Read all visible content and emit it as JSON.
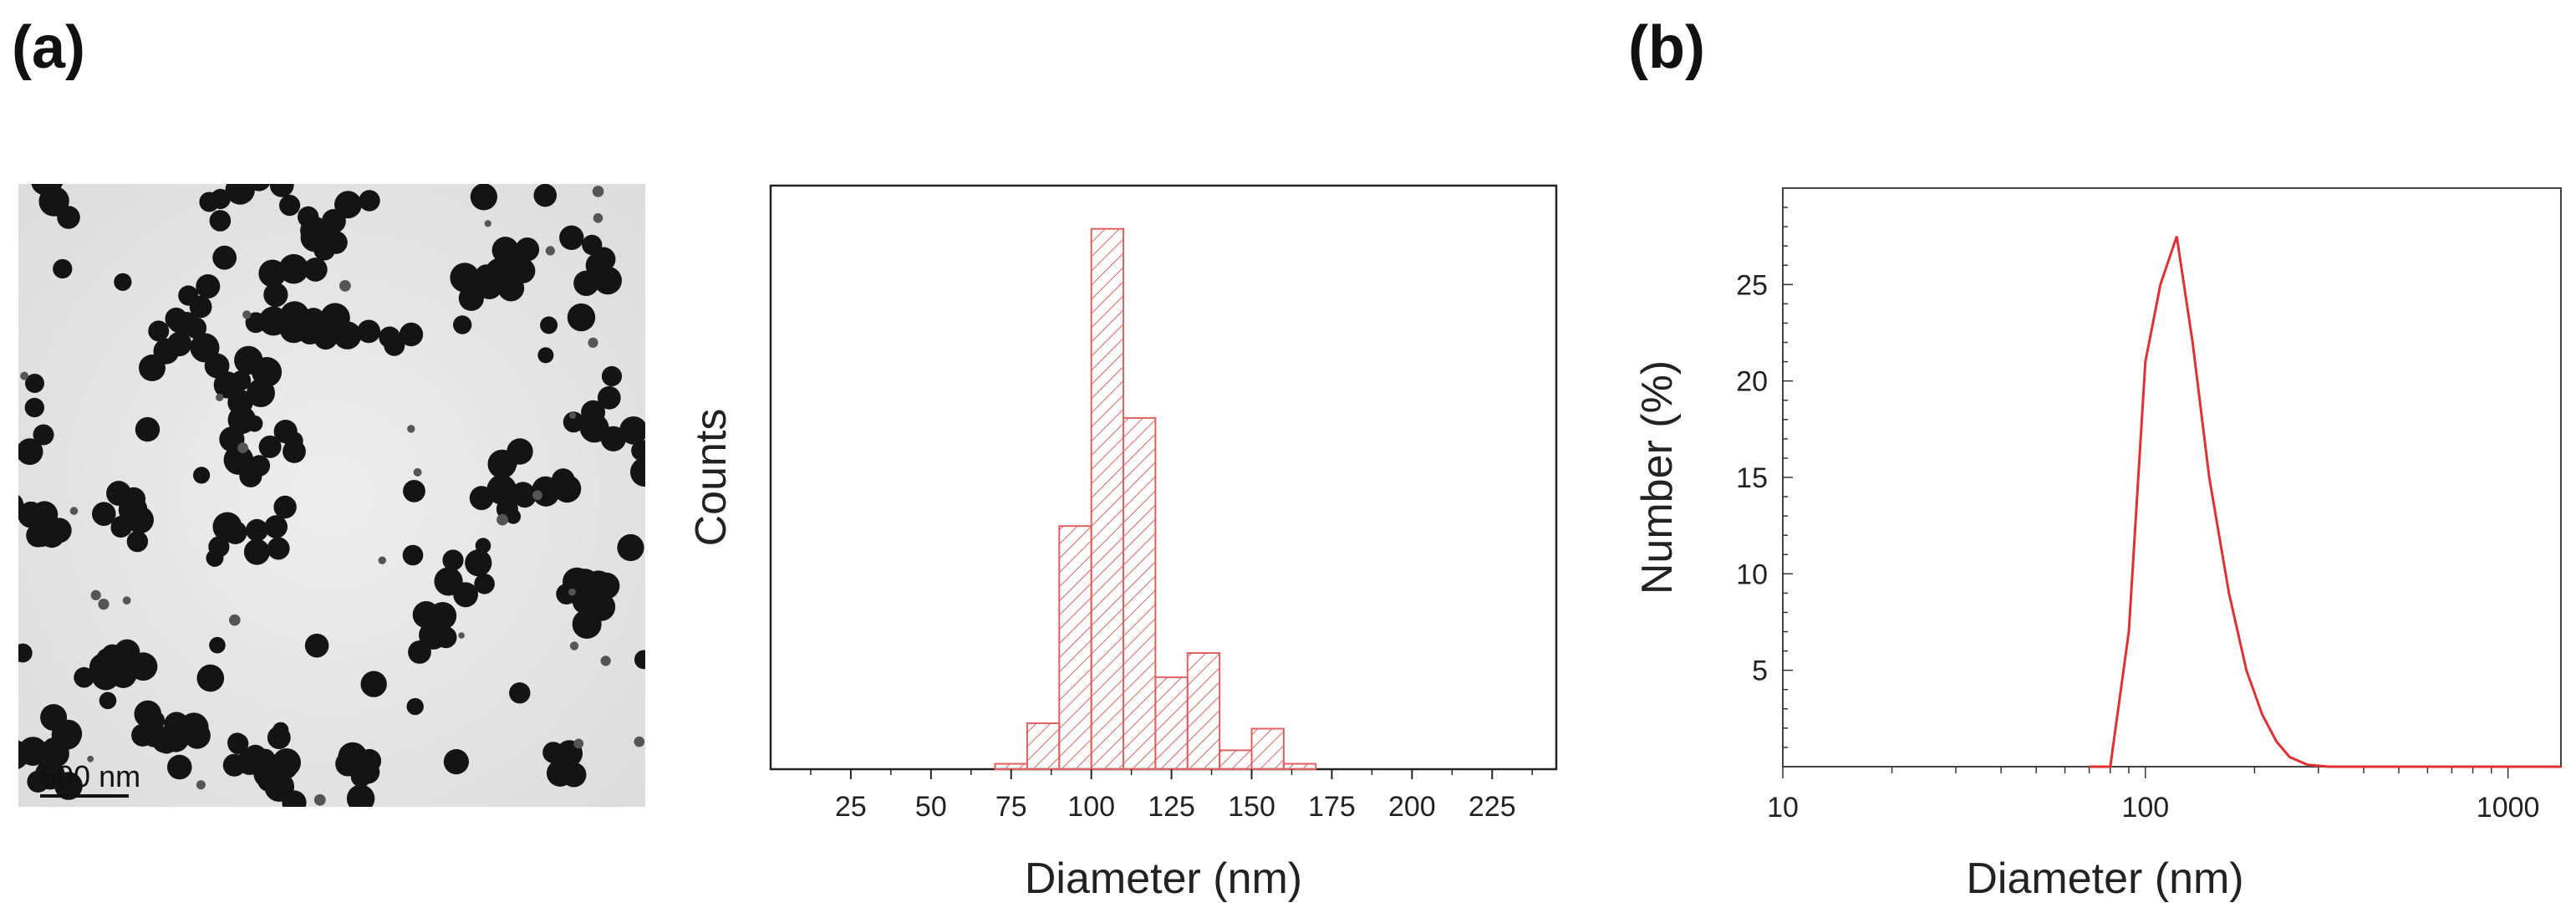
{
  "panels": {
    "a": "(a)",
    "b": "(b)"
  },
  "tem_image": {
    "scale_bar_label": "500 nm"
  },
  "chart_data": [
    {
      "type": "bar",
      "x_bin_edges": [
        70,
        80,
        90,
        100,
        110,
        120,
        130,
        140,
        150,
        160,
        170
      ],
      "values": [
        1,
        8.5,
        45,
        100,
        65,
        17,
        21.5,
        3.5,
        7.5,
        1
      ],
      "xticks": [
        25,
        50,
        75,
        100,
        125,
        150,
        175,
        200,
        225
      ],
      "xlim": [
        0,
        245
      ],
      "ylim": [
        0,
        108
      ],
      "xlabel": "Diameter (nm)",
      "ylabel": "Counts",
      "bar_color": "#e06060",
      "hatch": "diagonal",
      "legend": "none",
      "grid": false
    },
    {
      "type": "line",
      "x_scale": "log",
      "x": [
        70,
        80,
        90,
        100,
        110,
        122,
        135,
        150,
        170,
        190,
        210,
        230,
        250,
        280,
        320,
        400,
        1000,
        1400
      ],
      "y": [
        0,
        0,
        7,
        21,
        25,
        27.5,
        22,
        15,
        9,
        5,
        2.7,
        1.3,
        0.5,
        0.1,
        0,
        0,
        0,
        0
      ],
      "xticks": [
        10,
        100,
        1000
      ],
      "yticks": [
        5,
        10,
        15,
        20,
        25
      ],
      "xlim": [
        10,
        1400
      ],
      "ylim": [
        0,
        30
      ],
      "xlabel": "Diameter (nm)",
      "ylabel": "Number (%)",
      "line_color": "#e03030",
      "legend": "none",
      "grid": false
    }
  ]
}
